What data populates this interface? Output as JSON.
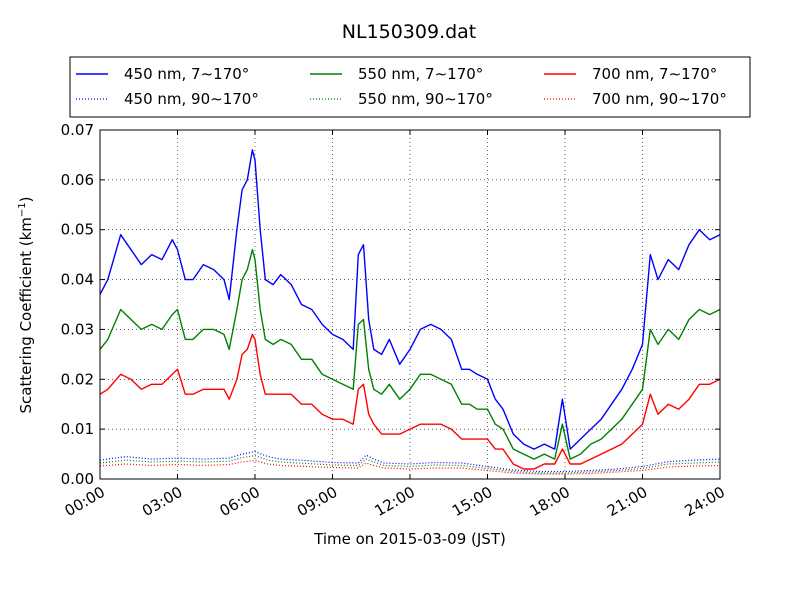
{
  "chart_data": {
    "type": "line",
    "title": "NL150309.dat",
    "xlabel": "Time on 2015-03-09 (JST)",
    "ylabel": "Scattering Coefficient (km",
    "ylabel_sup": "−1",
    "ylabel_close": ")",
    "xticks": [
      "00:00",
      "03:00",
      "06:00",
      "09:00",
      "12:00",
      "15:00",
      "18:00",
      "21:00",
      "24:00"
    ],
    "yticks": [
      "0.00",
      "0.01",
      "0.02",
      "0.03",
      "0.04",
      "0.05",
      "0.06",
      "0.07"
    ],
    "xlim": [
      0,
      24
    ],
    "ylim": [
      0,
      0.07
    ],
    "grid": true,
    "legend_position": "top",
    "series": [
      {
        "name": "450 nm, 7∼170°",
        "color": "#0000ff",
        "style": "solid",
        "x": [
          0,
          0.3,
          0.8,
          1.2,
          1.6,
          2.0,
          2.4,
          2.8,
          3.0,
          3.3,
          3.6,
          4.0,
          4.4,
          4.8,
          5.0,
          5.3,
          5.5,
          5.7,
          5.9,
          6.0,
          6.2,
          6.4,
          6.7,
          7.0,
          7.4,
          7.8,
          8.2,
          8.6,
          9.0,
          9.4,
          9.8,
          10.0,
          10.2,
          10.4,
          10.6,
          10.9,
          11.2,
          11.6,
          12.0,
          12.4,
          12.8,
          13.2,
          13.6,
          14.0,
          14.3,
          14.6,
          15.0,
          15.3,
          15.6,
          16.0,
          16.4,
          16.8,
          17.2,
          17.6,
          17.9,
          18.2,
          18.6,
          19.0,
          19.4,
          19.8,
          20.2,
          20.6,
          21.0,
          21.3,
          21.6,
          22.0,
          22.4,
          22.8,
          23.2,
          23.6,
          24.0
        ],
        "y": [
          0.037,
          0.04,
          0.049,
          0.046,
          0.043,
          0.045,
          0.044,
          0.048,
          0.046,
          0.04,
          0.04,
          0.043,
          0.042,
          0.04,
          0.036,
          0.05,
          0.058,
          0.06,
          0.066,
          0.064,
          0.05,
          0.04,
          0.039,
          0.041,
          0.039,
          0.035,
          0.034,
          0.031,
          0.029,
          0.028,
          0.026,
          0.045,
          0.047,
          0.032,
          0.026,
          0.025,
          0.028,
          0.023,
          0.026,
          0.03,
          0.031,
          0.03,
          0.028,
          0.022,
          0.022,
          0.021,
          0.02,
          0.016,
          0.014,
          0.009,
          0.007,
          0.006,
          0.007,
          0.006,
          0.016,
          0.006,
          0.008,
          0.01,
          0.012,
          0.015,
          0.018,
          0.022,
          0.027,
          0.045,
          0.04,
          0.044,
          0.042,
          0.047,
          0.05,
          0.048,
          0.049
        ]
      },
      {
        "name": "550 nm, 7∼170°",
        "color": "#008000",
        "style": "solid",
        "x": [
          0,
          0.3,
          0.8,
          1.2,
          1.6,
          2.0,
          2.4,
          2.8,
          3.0,
          3.3,
          3.6,
          4.0,
          4.4,
          4.8,
          5.0,
          5.3,
          5.5,
          5.7,
          5.9,
          6.0,
          6.2,
          6.4,
          6.7,
          7.0,
          7.4,
          7.8,
          8.2,
          8.6,
          9.0,
          9.4,
          9.8,
          10.0,
          10.2,
          10.4,
          10.6,
          10.9,
          11.2,
          11.6,
          12.0,
          12.4,
          12.8,
          13.2,
          13.6,
          14.0,
          14.3,
          14.6,
          15.0,
          15.3,
          15.6,
          16.0,
          16.4,
          16.8,
          17.2,
          17.6,
          17.9,
          18.2,
          18.6,
          19.0,
          19.4,
          19.8,
          20.2,
          20.6,
          21.0,
          21.3,
          21.6,
          22.0,
          22.4,
          22.8,
          23.2,
          23.6,
          24.0
        ],
        "y": [
          0.026,
          0.028,
          0.034,
          0.032,
          0.03,
          0.031,
          0.03,
          0.033,
          0.034,
          0.028,
          0.028,
          0.03,
          0.03,
          0.029,
          0.026,
          0.034,
          0.04,
          0.042,
          0.046,
          0.044,
          0.034,
          0.028,
          0.027,
          0.028,
          0.027,
          0.024,
          0.024,
          0.021,
          0.02,
          0.019,
          0.018,
          0.031,
          0.032,
          0.022,
          0.018,
          0.017,
          0.019,
          0.016,
          0.018,
          0.021,
          0.021,
          0.02,
          0.019,
          0.015,
          0.015,
          0.014,
          0.014,
          0.011,
          0.01,
          0.006,
          0.005,
          0.004,
          0.005,
          0.004,
          0.011,
          0.004,
          0.005,
          0.007,
          0.008,
          0.01,
          0.012,
          0.015,
          0.018,
          0.03,
          0.027,
          0.03,
          0.028,
          0.032,
          0.034,
          0.033,
          0.034
        ]
      },
      {
        "name": "700 nm, 7∼170°",
        "color": "#ff0000",
        "style": "solid",
        "x": [
          0,
          0.3,
          0.8,
          1.2,
          1.6,
          2.0,
          2.4,
          2.8,
          3.0,
          3.3,
          3.6,
          4.0,
          4.4,
          4.8,
          5.0,
          5.3,
          5.5,
          5.7,
          5.9,
          6.0,
          6.2,
          6.4,
          6.7,
          7.0,
          7.4,
          7.8,
          8.2,
          8.6,
          9.0,
          9.4,
          9.8,
          10.0,
          10.2,
          10.4,
          10.6,
          10.9,
          11.2,
          11.6,
          12.0,
          12.4,
          12.8,
          13.2,
          13.6,
          14.0,
          14.3,
          14.6,
          15.0,
          15.3,
          15.6,
          16.0,
          16.4,
          16.8,
          17.2,
          17.6,
          17.9,
          18.2,
          18.6,
          19.0,
          19.4,
          19.8,
          20.2,
          20.6,
          21.0,
          21.3,
          21.6,
          22.0,
          22.4,
          22.8,
          23.2,
          23.6,
          24.0
        ],
        "y": [
          0.017,
          0.018,
          0.021,
          0.02,
          0.018,
          0.019,
          0.019,
          0.021,
          0.022,
          0.017,
          0.017,
          0.018,
          0.018,
          0.018,
          0.016,
          0.02,
          0.025,
          0.026,
          0.029,
          0.028,
          0.021,
          0.017,
          0.017,
          0.017,
          0.017,
          0.015,
          0.015,
          0.013,
          0.012,
          0.012,
          0.011,
          0.018,
          0.019,
          0.013,
          0.011,
          0.009,
          0.009,
          0.009,
          0.01,
          0.011,
          0.011,
          0.011,
          0.01,
          0.008,
          0.008,
          0.008,
          0.008,
          0.006,
          0.006,
          0.003,
          0.002,
          0.002,
          0.003,
          0.003,
          0.006,
          0.003,
          0.003,
          0.004,
          0.005,
          0.006,
          0.007,
          0.009,
          0.011,
          0.017,
          0.013,
          0.015,
          0.014,
          0.016,
          0.019,
          0.019,
          0.02
        ]
      },
      {
        "name": "450 nm, 90∼170°",
        "color": "#0000ff",
        "style": "dotted",
        "x": [
          0,
          1,
          2,
          3,
          4,
          5,
          5.5,
          6,
          6.5,
          7,
          8,
          9,
          10,
          10.3,
          10.6,
          11,
          12,
          13,
          14,
          15,
          16,
          17,
          18,
          19,
          20,
          21,
          22,
          23,
          24
        ],
        "y": [
          0.0038,
          0.0045,
          0.004,
          0.0042,
          0.004,
          0.0042,
          0.005,
          0.0055,
          0.0045,
          0.004,
          0.0037,
          0.0033,
          0.0032,
          0.0048,
          0.004,
          0.0032,
          0.003,
          0.0033,
          0.0032,
          0.0025,
          0.0018,
          0.0015,
          0.0015,
          0.0017,
          0.002,
          0.0025,
          0.0035,
          0.0038,
          0.004
        ]
      },
      {
        "name": "550 nm, 90∼170°",
        "color": "#008000",
        "style": "dotted",
        "x": [
          0,
          1,
          2,
          3,
          4,
          5,
          5.5,
          6,
          6.5,
          7,
          8,
          9,
          10,
          10.3,
          10.6,
          11,
          12,
          13,
          14,
          15,
          16,
          17,
          18,
          19,
          20,
          21,
          22,
          23,
          24
        ],
        "y": [
          0.0032,
          0.0038,
          0.0034,
          0.0036,
          0.0034,
          0.0036,
          0.0043,
          0.0047,
          0.0038,
          0.0034,
          0.0031,
          0.0028,
          0.0027,
          0.004,
          0.0034,
          0.0027,
          0.0025,
          0.0028,
          0.0027,
          0.0021,
          0.0015,
          0.0012,
          0.0012,
          0.0014,
          0.0017,
          0.0021,
          0.003,
          0.0032,
          0.0034
        ]
      },
      {
        "name": "700 nm, 90∼170°",
        "color": "#ff0000",
        "style": "dotted",
        "x": [
          0,
          1,
          2,
          3,
          4,
          5,
          5.5,
          6,
          6.5,
          7,
          8,
          9,
          10,
          10.3,
          10.6,
          11,
          12,
          13,
          14,
          15,
          16,
          17,
          18,
          19,
          20,
          21,
          22,
          23,
          24
        ],
        "y": [
          0.0026,
          0.003,
          0.0027,
          0.0029,
          0.0027,
          0.0029,
          0.0034,
          0.0037,
          0.003,
          0.0027,
          0.0025,
          0.0023,
          0.0022,
          0.0032,
          0.0027,
          0.0022,
          0.002,
          0.0022,
          0.0022,
          0.0017,
          0.0012,
          0.001,
          0.001,
          0.0011,
          0.0014,
          0.0017,
          0.0024,
          0.0026,
          0.0027
        ]
      }
    ]
  }
}
